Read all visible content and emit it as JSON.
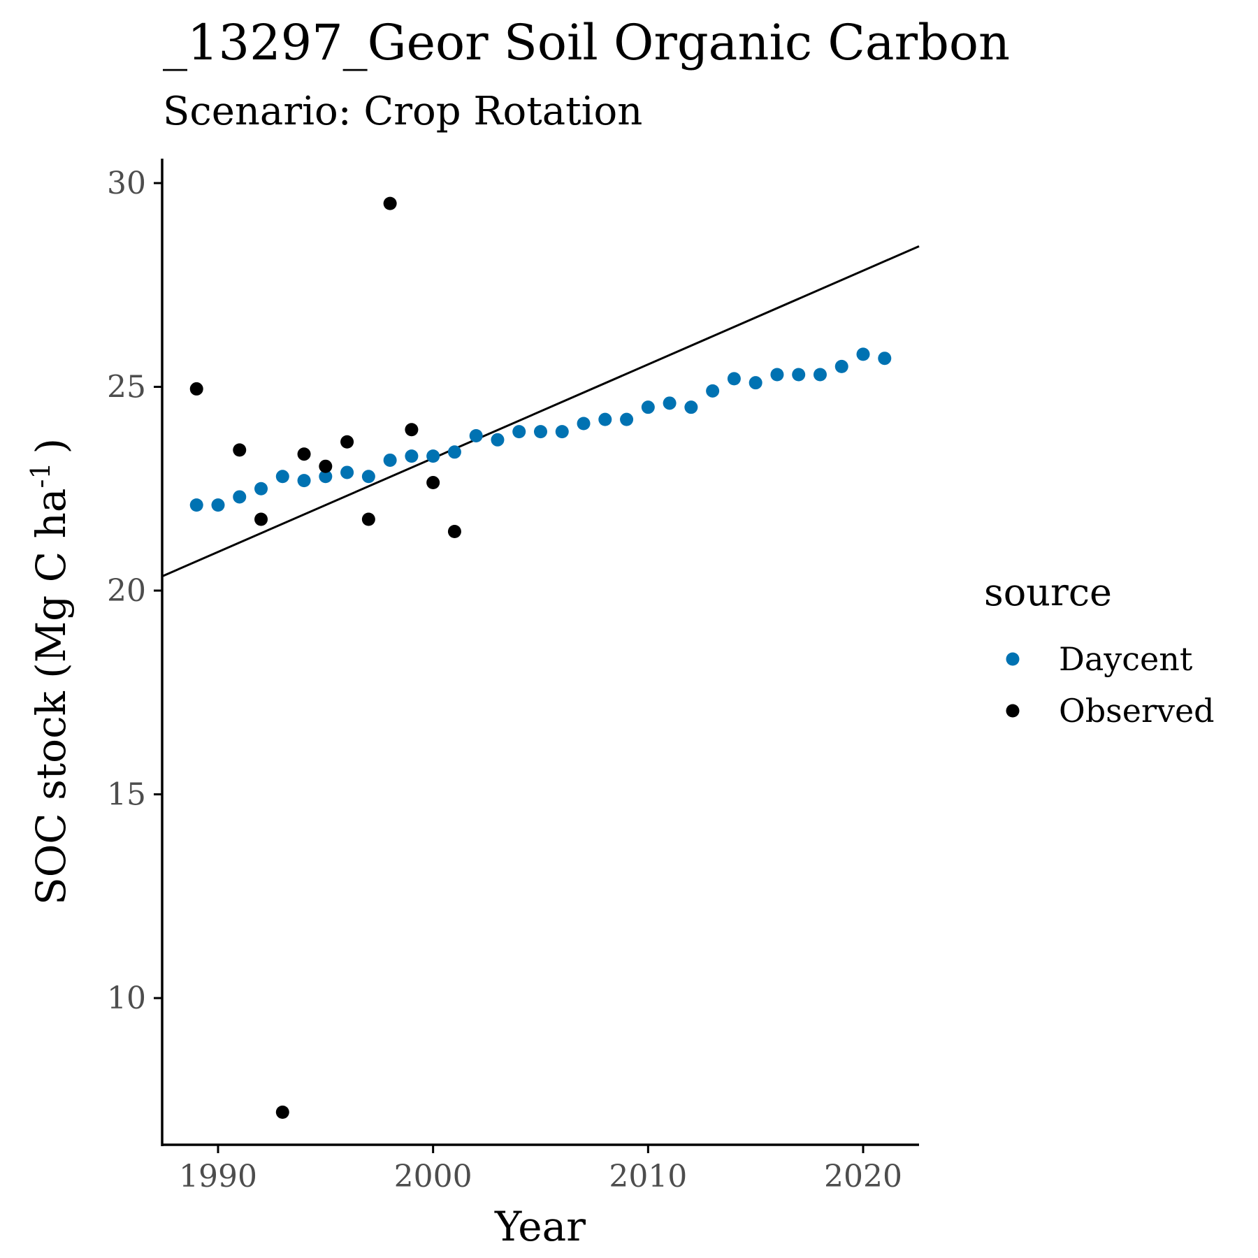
{
  "chart_data": {
    "type": "scatter",
    "title": "_13297_Geor Soil Organic Carbon",
    "subtitle": "Scenario: Crop Rotation",
    "xlabel": "Year",
    "ylabel_main": "SOC stock (Mg C ha",
    "ylabel_sup": "-1",
    "ylabel_close": ")",
    "xlim": [
      1987.4,
      2022.6
    ],
    "ylim": [
      6.4,
      30.6
    ],
    "xticks": [
      1990,
      2000,
      2010,
      2020
    ],
    "yticks": [
      10,
      15,
      20,
      25,
      30
    ],
    "legend": {
      "title": "source",
      "position": "right"
    },
    "series": [
      {
        "name": "Daycent",
        "color": "#0072B2",
        "x": [
          1989,
          1990,
          1991,
          1992,
          1993,
          1994,
          1995,
          1996,
          1997,
          1998,
          1999,
          2000,
          2001,
          2002,
          2003,
          2004,
          2005,
          2006,
          2007,
          2008,
          2009,
          2010,
          2011,
          2012,
          2013,
          2014,
          2015,
          2016,
          2017,
          2018,
          2019,
          2020,
          2021
        ],
        "y": [
          22.1,
          22.1,
          22.3,
          22.5,
          22.8,
          22.7,
          22.8,
          22.9,
          22.8,
          23.2,
          23.3,
          23.3,
          23.4,
          23.8,
          23.7,
          23.9,
          23.9,
          23.9,
          24.1,
          24.2,
          24.2,
          24.5,
          24.6,
          24.5,
          24.9,
          25.2,
          25.1,
          25.3,
          25.3,
          25.3,
          25.5,
          25.8,
          25.7
        ]
      },
      {
        "name": "Observed",
        "color": "#000000",
        "x": [
          1989,
          1991,
          1992,
          1993,
          1994,
          1995,
          1996,
          1997,
          1998,
          1999,
          2000,
          2001
        ],
        "y": [
          24.95,
          23.45,
          21.75,
          7.2,
          23.35,
          23.05,
          23.65,
          21.75,
          29.5,
          23.95,
          22.65,
          21.45
        ]
      }
    ],
    "trendline": {
      "color": "#000000",
      "x": [
        1987.4,
        2022.6
      ],
      "y": [
        20.35,
        28.45
      ]
    }
  }
}
